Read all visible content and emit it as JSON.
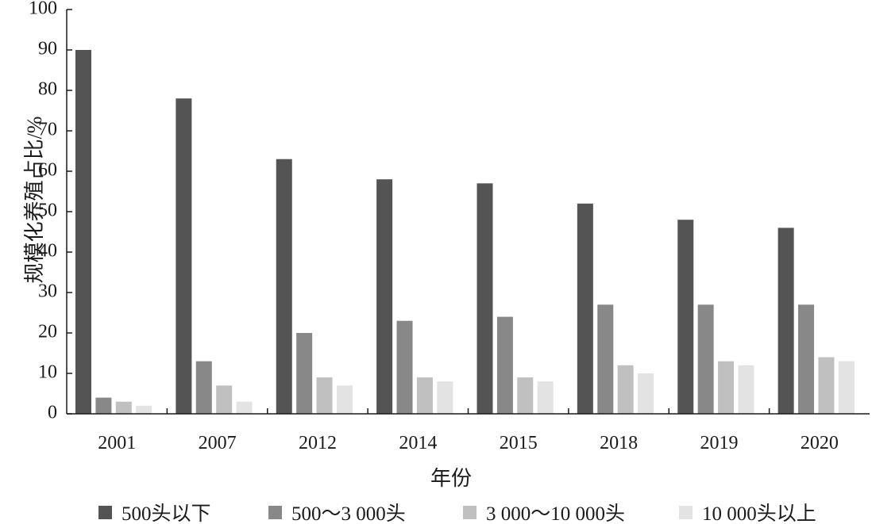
{
  "chart_data": {
    "type": "bar",
    "title": "",
    "xlabel": "年份",
    "ylabel": "规模化养殖占比/%",
    "ylim": [
      0,
      100
    ],
    "yticks": [
      "0",
      "10",
      "20",
      "30",
      "40",
      "50",
      "60",
      "70",
      "80",
      "90",
      "100"
    ],
    "categories": [
      "2001",
      "2007",
      "2012",
      "2014",
      "2015",
      "2018",
      "2019",
      "2020"
    ],
    "grid": false,
    "legend_position": "bottom",
    "series": [
      {
        "name": "500头以下",
        "color": "#545454",
        "values": [
          90,
          78,
          63,
          58,
          57,
          52,
          48,
          46
        ]
      },
      {
        "name": "500～3 000头",
        "color": "#888888",
        "values": [
          4,
          13,
          20,
          23,
          24,
          27,
          27,
          27
        ]
      },
      {
        "name": "3 000～10 000头",
        "color": "#c0c0c0",
        "values": [
          3,
          7,
          9,
          9,
          9,
          12,
          13,
          14
        ]
      },
      {
        "name": "10 000头以上",
        "color": "#e3e3e3",
        "values": [
          2,
          3,
          7,
          8,
          8,
          10,
          12,
          13
        ]
      }
    ]
  }
}
